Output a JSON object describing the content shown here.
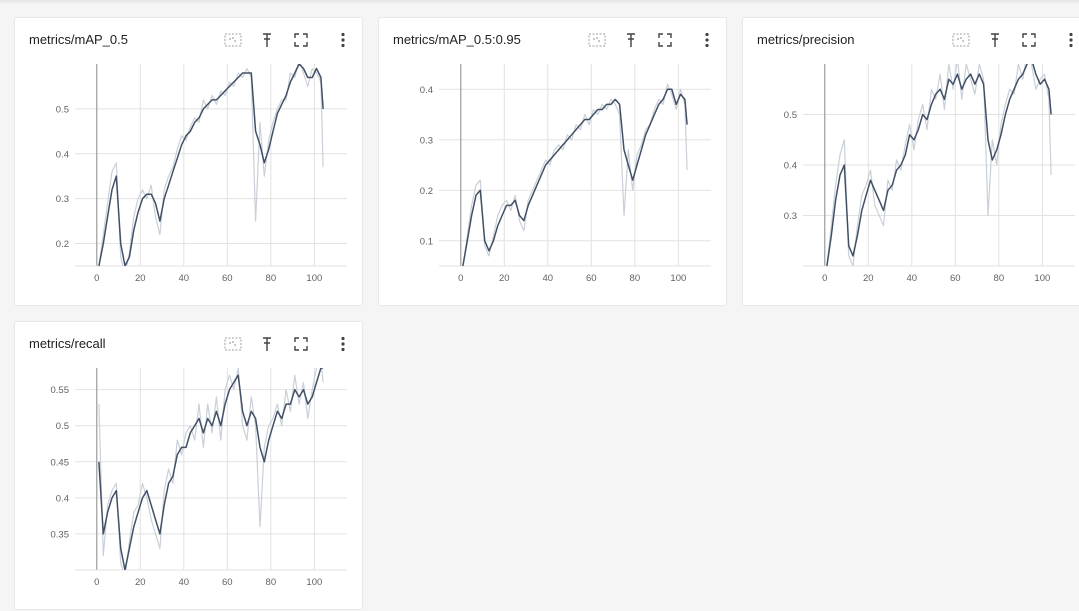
{
  "colors": {
    "smoothed": "#425066",
    "raw": "#c9d0d9",
    "grid": "#e2e2e2",
    "axis": "#9e9e9e"
  },
  "actions": {
    "fit_icon": "fit-domain-icon",
    "pin_icon": "pin-icon",
    "fullscreen_icon": "fullscreen-icon",
    "menu_icon": "more-vert-icon"
  },
  "chart_data": [
    {
      "type": "line",
      "title": "metrics/mAP_0.5",
      "xlim": [
        -10,
        115
      ],
      "ylim": [
        0.15,
        0.6
      ],
      "xticks": [
        0,
        20,
        40,
        60,
        80,
        100
      ],
      "yticks": [
        0.2,
        0.3,
        0.4,
        0.5
      ],
      "ytick_labels": [
        "0.2",
        "0.3",
        "0.4",
        "0.5"
      ],
      "grid": true,
      "series": [
        {
          "role": "smoothed",
          "x": [
            1,
            3,
            5,
            7,
            9,
            11,
            13,
            15,
            17,
            19,
            21,
            23,
            25,
            27,
            29,
            31,
            33,
            35,
            37,
            39,
            41,
            43,
            45,
            47,
            49,
            51,
            53,
            55,
            57,
            59,
            61,
            63,
            65,
            67,
            69,
            71,
            73,
            75,
            77,
            79,
            81,
            83,
            85,
            87,
            89,
            91,
            93,
            95,
            97,
            99,
            101,
            103,
            104
          ],
          "y": [
            0.15,
            0.2,
            0.26,
            0.32,
            0.35,
            0.2,
            0.15,
            0.17,
            0.23,
            0.27,
            0.3,
            0.31,
            0.31,
            0.29,
            0.25,
            0.3,
            0.33,
            0.36,
            0.39,
            0.42,
            0.44,
            0.45,
            0.47,
            0.48,
            0.5,
            0.51,
            0.52,
            0.52,
            0.53,
            0.54,
            0.55,
            0.56,
            0.57,
            0.58,
            0.58,
            0.58,
            0.45,
            0.42,
            0.38,
            0.41,
            0.45,
            0.49,
            0.51,
            0.53,
            0.56,
            0.58,
            0.6,
            0.59,
            0.57,
            0.57,
            0.59,
            0.57,
            0.5
          ]
        },
        {
          "role": "raw",
          "x": [
            1,
            3,
            5,
            7,
            9,
            11,
            13,
            15,
            17,
            19,
            21,
            23,
            25,
            27,
            29,
            31,
            33,
            35,
            37,
            39,
            41,
            43,
            45,
            47,
            49,
            51,
            53,
            55,
            57,
            59,
            61,
            63,
            65,
            67,
            69,
            71,
            73,
            75,
            77,
            79,
            81,
            83,
            85,
            87,
            89,
            91,
            93,
            95,
            97,
            99,
            101,
            103,
            104
          ],
          "y": [
            0.15,
            0.22,
            0.29,
            0.36,
            0.38,
            0.17,
            0.13,
            0.18,
            0.26,
            0.3,
            0.32,
            0.3,
            0.33,
            0.26,
            0.22,
            0.32,
            0.35,
            0.37,
            0.41,
            0.44,
            0.43,
            0.46,
            0.48,
            0.47,
            0.52,
            0.5,
            0.53,
            0.51,
            0.54,
            0.53,
            0.56,
            0.55,
            0.58,
            0.57,
            0.59,
            0.57,
            0.25,
            0.47,
            0.35,
            0.43,
            0.47,
            0.5,
            0.52,
            0.52,
            0.58,
            0.57,
            0.61,
            0.58,
            0.55,
            0.59,
            0.58,
            0.56,
            0.37
          ]
        }
      ]
    },
    {
      "type": "line",
      "title": "metrics/mAP_0.5:0.95",
      "xlim": [
        -10,
        115
      ],
      "ylim": [
        0.05,
        0.45
      ],
      "xticks": [
        0,
        20,
        40,
        60,
        80,
        100
      ],
      "yticks": [
        0.1,
        0.2,
        0.3,
        0.4
      ],
      "ytick_labels": [
        "0.1",
        "0.2",
        "0.3",
        "0.4"
      ],
      "grid": true,
      "series": [
        {
          "role": "smoothed",
          "x": [
            1,
            3,
            5,
            7,
            9,
            11,
            13,
            15,
            17,
            19,
            21,
            23,
            25,
            27,
            29,
            31,
            33,
            35,
            37,
            39,
            41,
            43,
            45,
            47,
            49,
            51,
            53,
            55,
            57,
            59,
            61,
            63,
            65,
            67,
            69,
            71,
            73,
            75,
            77,
            79,
            81,
            83,
            85,
            87,
            89,
            91,
            93,
            95,
            97,
            99,
            101,
            103,
            104
          ],
          "y": [
            0.05,
            0.1,
            0.15,
            0.19,
            0.2,
            0.1,
            0.08,
            0.1,
            0.13,
            0.15,
            0.17,
            0.17,
            0.18,
            0.15,
            0.14,
            0.17,
            0.19,
            0.21,
            0.23,
            0.25,
            0.26,
            0.27,
            0.28,
            0.29,
            0.3,
            0.31,
            0.32,
            0.33,
            0.34,
            0.34,
            0.35,
            0.36,
            0.36,
            0.37,
            0.37,
            0.38,
            0.37,
            0.28,
            0.25,
            0.22,
            0.25,
            0.28,
            0.31,
            0.33,
            0.35,
            0.37,
            0.38,
            0.4,
            0.4,
            0.37,
            0.39,
            0.38,
            0.33
          ]
        },
        {
          "role": "raw",
          "x": [
            1,
            3,
            5,
            7,
            9,
            11,
            13,
            15,
            17,
            19,
            21,
            23,
            25,
            27,
            29,
            31,
            33,
            35,
            37,
            39,
            41,
            43,
            45,
            47,
            49,
            51,
            53,
            55,
            57,
            59,
            61,
            63,
            65,
            67,
            69,
            71,
            73,
            75,
            77,
            79,
            81,
            83,
            85,
            87,
            89,
            91,
            93,
            95,
            97,
            99,
            101,
            103,
            104
          ],
          "y": [
            0.05,
            0.11,
            0.17,
            0.21,
            0.22,
            0.09,
            0.07,
            0.11,
            0.15,
            0.17,
            0.18,
            0.16,
            0.19,
            0.14,
            0.12,
            0.18,
            0.2,
            0.22,
            0.24,
            0.26,
            0.25,
            0.28,
            0.29,
            0.28,
            0.31,
            0.3,
            0.33,
            0.32,
            0.35,
            0.33,
            0.36,
            0.35,
            0.37,
            0.36,
            0.38,
            0.37,
            0.35,
            0.15,
            0.28,
            0.2,
            0.27,
            0.29,
            0.32,
            0.33,
            0.36,
            0.38,
            0.37,
            0.41,
            0.39,
            0.36,
            0.4,
            0.37,
            0.24
          ]
        }
      ]
    },
    {
      "type": "line",
      "title": "metrics/precision",
      "xlim": [
        -10,
        115
      ],
      "ylim": [
        0.2,
        0.6
      ],
      "xticks": [
        0,
        20,
        40,
        60,
        80,
        100
      ],
      "yticks": [
        0.3,
        0.4,
        0.5
      ],
      "ytick_labels": [
        "0.3",
        "0.4",
        "0.5"
      ],
      "grid": true,
      "series": [
        {
          "role": "smoothed",
          "x": [
            1,
            3,
            5,
            7,
            9,
            11,
            13,
            15,
            17,
            19,
            21,
            23,
            25,
            27,
            29,
            31,
            33,
            35,
            37,
            39,
            41,
            43,
            45,
            47,
            49,
            51,
            53,
            55,
            57,
            59,
            61,
            63,
            65,
            67,
            69,
            71,
            73,
            75,
            77,
            79,
            81,
            83,
            85,
            87,
            89,
            91,
            93,
            95,
            97,
            99,
            101,
            103,
            104
          ],
          "y": [
            0.2,
            0.26,
            0.33,
            0.38,
            0.4,
            0.24,
            0.22,
            0.26,
            0.31,
            0.34,
            0.37,
            0.35,
            0.33,
            0.31,
            0.35,
            0.36,
            0.39,
            0.4,
            0.42,
            0.46,
            0.45,
            0.47,
            0.5,
            0.49,
            0.52,
            0.54,
            0.55,
            0.53,
            0.57,
            0.56,
            0.58,
            0.55,
            0.57,
            0.58,
            0.56,
            0.58,
            0.56,
            0.45,
            0.41,
            0.43,
            0.46,
            0.5,
            0.53,
            0.55,
            0.57,
            0.58,
            0.6,
            0.61,
            0.58,
            0.56,
            0.57,
            0.55,
            0.5
          ]
        },
        {
          "role": "raw",
          "x": [
            1,
            3,
            5,
            7,
            9,
            11,
            13,
            15,
            17,
            19,
            21,
            23,
            25,
            27,
            29,
            31,
            33,
            35,
            37,
            39,
            41,
            43,
            45,
            47,
            49,
            51,
            53,
            55,
            57,
            59,
            61,
            63,
            65,
            67,
            69,
            71,
            73,
            75,
            77,
            79,
            81,
            83,
            85,
            87,
            89,
            91,
            93,
            95,
            97,
            99,
            101,
            103,
            104
          ],
          "y": [
            0.2,
            0.28,
            0.36,
            0.42,
            0.45,
            0.22,
            0.2,
            0.28,
            0.34,
            0.36,
            0.39,
            0.32,
            0.3,
            0.28,
            0.37,
            0.35,
            0.41,
            0.39,
            0.44,
            0.48,
            0.43,
            0.49,
            0.52,
            0.47,
            0.55,
            0.53,
            0.58,
            0.51,
            0.6,
            0.55,
            0.61,
            0.53,
            0.6,
            0.57,
            0.54,
            0.6,
            0.57,
            0.3,
            0.45,
            0.4,
            0.48,
            0.52,
            0.55,
            0.54,
            0.6,
            0.57,
            0.62,
            0.6,
            0.55,
            0.57,
            0.58,
            0.53,
            0.38
          ]
        }
      ]
    },
    {
      "type": "line",
      "title": "metrics/recall",
      "xlim": [
        -10,
        115
      ],
      "ylim": [
        0.3,
        0.58
      ],
      "xticks": [
        0,
        20,
        40,
        60,
        80,
        100
      ],
      "yticks": [
        0.35,
        0.4,
        0.45,
        0.5,
        0.55
      ],
      "ytick_labels": [
        "0.35",
        "0.4",
        "0.45",
        "0.5",
        "0.55"
      ],
      "grid": true,
      "series": [
        {
          "role": "smoothed",
          "x": [
            1,
            3,
            5,
            7,
            9,
            11,
            13,
            15,
            17,
            19,
            21,
            23,
            25,
            27,
            29,
            31,
            33,
            35,
            37,
            39,
            41,
            43,
            45,
            47,
            49,
            51,
            53,
            55,
            57,
            59,
            61,
            63,
            65,
            67,
            69,
            71,
            73,
            75,
            77,
            79,
            81,
            83,
            85,
            87,
            89,
            91,
            93,
            95,
            97,
            99,
            101,
            103,
            104
          ],
          "y": [
            0.45,
            0.35,
            0.38,
            0.4,
            0.41,
            0.33,
            0.3,
            0.33,
            0.36,
            0.38,
            0.4,
            0.41,
            0.39,
            0.37,
            0.35,
            0.39,
            0.42,
            0.43,
            0.46,
            0.47,
            0.47,
            0.49,
            0.5,
            0.51,
            0.49,
            0.51,
            0.5,
            0.52,
            0.5,
            0.53,
            0.55,
            0.56,
            0.57,
            0.52,
            0.5,
            0.52,
            0.51,
            0.47,
            0.45,
            0.48,
            0.5,
            0.52,
            0.51,
            0.53,
            0.53,
            0.55,
            0.54,
            0.55,
            0.53,
            0.54,
            0.56,
            0.58,
            0.58
          ]
        },
        {
          "role": "raw",
          "x": [
            1,
            3,
            5,
            7,
            9,
            11,
            13,
            15,
            17,
            19,
            21,
            23,
            25,
            27,
            29,
            31,
            33,
            35,
            37,
            39,
            41,
            43,
            45,
            47,
            49,
            51,
            53,
            55,
            57,
            59,
            61,
            63,
            65,
            67,
            69,
            71,
            73,
            75,
            77,
            79,
            81,
            83,
            85,
            87,
            89,
            91,
            93,
            95,
            97,
            99,
            101,
            103,
            104
          ],
          "y": [
            0.53,
            0.32,
            0.39,
            0.41,
            0.42,
            0.31,
            0.29,
            0.34,
            0.38,
            0.39,
            0.42,
            0.4,
            0.37,
            0.35,
            0.33,
            0.41,
            0.44,
            0.42,
            0.48,
            0.46,
            0.49,
            0.5,
            0.48,
            0.53,
            0.47,
            0.53,
            0.49,
            0.54,
            0.48,
            0.55,
            0.57,
            0.55,
            0.58,
            0.5,
            0.48,
            0.54,
            0.5,
            0.36,
            0.47,
            0.5,
            0.51,
            0.53,
            0.5,
            0.55,
            0.52,
            0.57,
            0.53,
            0.56,
            0.51,
            0.55,
            0.58,
            0.59,
            0.56
          ]
        }
      ]
    }
  ]
}
